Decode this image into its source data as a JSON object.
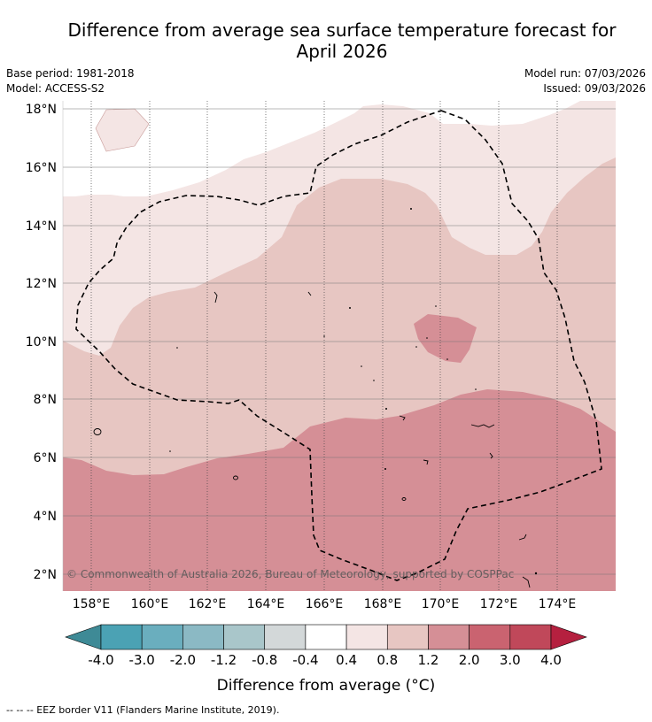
{
  "title_line1": "Difference from average sea surface temperature forecast for",
  "title_line2": "April 2026",
  "base_period": "Base period: 1981-2018",
  "model": "Model: ACCESS-S2",
  "model_run": "Model run: 07/03/2026",
  "issued": "Issued: 09/03/2026",
  "lat_labels": [
    "18°N",
    "16°N",
    "14°N",
    "12°N",
    "10°N",
    "8°N",
    "6°N",
    "4°N",
    "2°N"
  ],
  "lon_labels": [
    "158°E",
    "160°E",
    "162°E",
    "164°E",
    "166°E",
    "168°E",
    "170°E",
    "172°E",
    "174°E"
  ],
  "copyright": "© Commonwealth of Australia 2026, Bureau of Meteorology, supported by COSPPac",
  "colorbar": {
    "ticks": [
      "-4.0",
      "-3.0",
      "-2.0",
      "-1.2",
      "-0.8",
      "-0.4",
      "0.4",
      "0.8",
      "1.2",
      "2.0",
      "3.0",
      "4.0"
    ],
    "colors": [
      "#4ba2b4",
      "#6aaebe",
      "#8bb9c4",
      "#a9c6ca",
      "#d3d8d9",
      "#ffffff",
      "#f4e5e4",
      "#e7c6c2",
      "#d58f96",
      "#ca6370",
      "#c0485a"
    ],
    "under_color": "#3e8a96",
    "over_color": "#b5203f",
    "label": "Difference from average (°C)"
  },
  "legend_footer": "--  --  -- EEZ border V11 (Flanders Marine Institute, 2019)."
}
